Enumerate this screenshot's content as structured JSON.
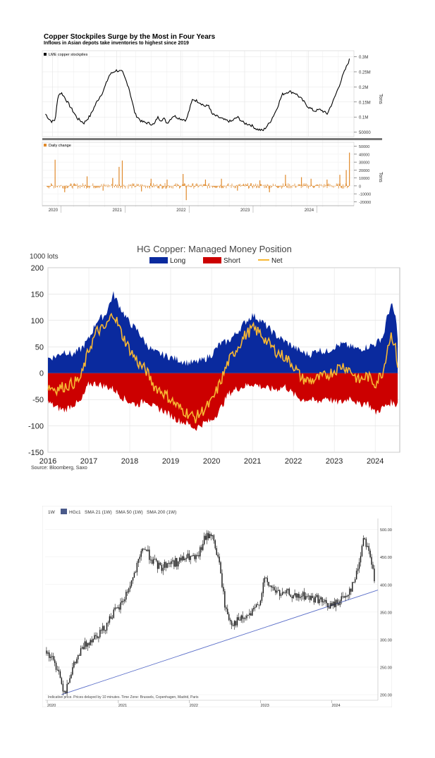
{
  "chart_data": [
    {
      "type": "line",
      "title": "Copper Stockpiles Surge by the Most in Four Years",
      "subtitle": "Inflows in Asian depots take inventories to highest since 2019",
      "x_ticks": [
        "2020",
        "2021",
        "2022",
        "2023",
        "2024"
      ],
      "panels": [
        {
          "kind": "line",
          "legend": "LME copper stockpiles",
          "ylabel": "Tons",
          "color": "#000000",
          "y_ticks": [
            "0.3M",
            "0.25M",
            "0.2M",
            "0.15M",
            "0.1M",
            "50000"
          ],
          "y_tick_values": [
            300000,
            250000,
            200000,
            150000,
            100000,
            50000
          ],
          "ylim": [
            35000,
            320000
          ],
          "x": [
            2019.8,
            2019.85,
            2019.9,
            2019.95,
            2020.0,
            2020.05,
            2020.1,
            2020.2,
            2020.3,
            2020.4,
            2020.5,
            2020.6,
            2020.7,
            2020.8,
            2020.9,
            2021.0,
            2021.1,
            2021.2,
            2021.3,
            2021.4,
            2021.5,
            2021.55,
            2021.6,
            2021.65,
            2021.7,
            2021.8,
            2021.9,
            2022.0,
            2022.1,
            2022.2,
            2022.3,
            2022.35,
            2022.4,
            2022.5,
            2022.6,
            2022.7,
            2022.8,
            2022.9,
            2023.0,
            2023.1,
            2023.2,
            2023.3,
            2023.4,
            2023.5,
            2023.6,
            2023.7,
            2023.8,
            2023.9,
            2024.0,
            2024.1,
            2024.2,
            2024.3,
            2024.4,
            2024.45,
            2024.5,
            2024.55
          ],
          "values": [
            110000,
            95000,
            85000,
            90000,
            175000,
            180000,
            165000,
            130000,
            95000,
            80000,
            105000,
            150000,
            185000,
            240000,
            255000,
            250000,
            200000,
            110000,
            85000,
            80000,
            75000,
            100000,
            90000,
            95000,
            80000,
            105000,
            95000,
            90000,
            160000,
            150000,
            135000,
            140000,
            110000,
            100000,
            90000,
            85000,
            100000,
            80000,
            75000,
            60000,
            55000,
            80000,
            120000,
            175000,
            185000,
            180000,
            160000,
            135000,
            120000,
            125000,
            110000,
            155000,
            210000,
            240000,
            265000,
            290000
          ]
        },
        {
          "kind": "bar",
          "legend": "Daily change",
          "ylabel": "Tons",
          "color": "#e08a2c",
          "y_ticks": [
            "50000",
            "40000",
            "30000",
            "20000",
            "10000",
            "0",
            "-10000",
            "-20000"
          ],
          "y_tick_values": [
            50000,
            40000,
            30000,
            20000,
            10000,
            0,
            -10000,
            -20000
          ],
          "ylim": [
            -25000,
            55000
          ],
          "spikes_x": [
            2019.95,
            2020.1,
            2020.45,
            2020.7,
            2020.85,
            2020.95,
            2021.0,
            2021.3,
            2021.45,
            2021.7,
            2021.95,
            2022.0,
            2022.3,
            2022.55,
            2022.8,
            2023.15,
            2023.3,
            2023.55,
            2023.8,
            2023.95,
            2024.2,
            2024.4,
            2024.5,
            2024.55
          ],
          "spikes_v": [
            33000,
            -8000,
            12000,
            -6000,
            10000,
            24000,
            32000,
            -7000,
            9000,
            8000,
            15000,
            -18000,
            8000,
            9000,
            -6000,
            7000,
            -8000,
            14000,
            11000,
            9000,
            8000,
            14000,
            20000,
            42000
          ]
        }
      ]
    },
    {
      "type": "area",
      "title": "HG Copper: Managed Money Position",
      "ylabel": "1000 lots",
      "ylim": [
        -150,
        200
      ],
      "y_ticks": [
        200,
        150,
        100,
        50,
        0,
        -50,
        -100,
        -150
      ],
      "xlim": [
        2016,
        2024.6
      ],
      "x_ticks": [
        2016,
        2017,
        2018,
        2019,
        2020,
        2021,
        2022,
        2023,
        2024
      ],
      "source": "Source: Bloomberg, Saxo",
      "legend": [
        "Long",
        "Short",
        "Net"
      ],
      "colors": {
        "Long": "#0a2a9e",
        "Short": "#cc0000",
        "Net": "#f7b733"
      },
      "x": [
        2016.0,
        2016.2,
        2016.4,
        2016.6,
        2016.8,
        2017.0,
        2017.2,
        2017.4,
        2017.6,
        2017.8,
        2018.0,
        2018.2,
        2018.4,
        2018.6,
        2018.8,
        2019.0,
        2019.2,
        2019.4,
        2019.6,
        2019.8,
        2020.0,
        2020.2,
        2020.4,
        2020.6,
        2020.8,
        2021.0,
        2021.2,
        2021.4,
        2021.6,
        2021.8,
        2022.0,
        2022.2,
        2022.4,
        2022.6,
        2022.8,
        2023.0,
        2023.2,
        2023.4,
        2023.6,
        2023.8,
        2024.0,
        2024.2,
        2024.3,
        2024.4,
        2024.5,
        2024.55
      ],
      "series": [
        {
          "name": "Long",
          "values": [
            28,
            32,
            42,
            35,
            45,
            65,
            100,
            110,
            150,
            120,
            95,
            80,
            55,
            40,
            35,
            30,
            25,
            20,
            20,
            25,
            35,
            55,
            60,
            75,
            95,
            110,
            100,
            85,
            70,
            60,
            50,
            40,
            35,
            45,
            40,
            50,
            55,
            50,
            45,
            50,
            55,
            70,
            110,
            130,
            105,
            70
          ]
        },
        {
          "name": "Short",
          "values": [
            -55,
            -65,
            -70,
            -60,
            -55,
            -20,
            -20,
            -25,
            -30,
            -45,
            -55,
            -60,
            -50,
            -65,
            -70,
            -80,
            -90,
            -95,
            -105,
            -95,
            -90,
            -70,
            -40,
            -30,
            -25,
            -20,
            -25,
            -30,
            -30,
            -25,
            -40,
            -50,
            -50,
            -55,
            -45,
            -55,
            -55,
            -45,
            -60,
            -55,
            -75,
            -65,
            -60,
            -55,
            -60,
            -55
          ]
        },
        {
          "name": "Net",
          "values": [
            -25,
            -30,
            -25,
            -20,
            -10,
            45,
            80,
            85,
            115,
            75,
            45,
            20,
            5,
            -25,
            -35,
            -50,
            -65,
            -75,
            -85,
            -70,
            -55,
            -20,
            20,
            45,
            70,
            85,
            75,
            55,
            40,
            30,
            15,
            -10,
            -15,
            -10,
            -5,
            5,
            15,
            5,
            -15,
            -5,
            -20,
            5,
            50,
            75,
            45,
            15
          ]
        }
      ]
    },
    {
      "type": "candlestick",
      "toolbar": {
        "interval": "1W",
        "ticker": "HGc1",
        "sma21": "SMA 21 (1W)",
        "sma50": "SMA 50 (1W)",
        "sma200": "SMA 200 (1W)"
      },
      "footer": "Indicative price. Prices delayed by 10 minutes.  Time Zone: Brussels, Copenhagen, Madrid, Paris",
      "ylim": [
        195,
        520
      ],
      "y_ticks": [
        "500.00",
        "450.00",
        "400.00",
        "350.00",
        "300.00",
        "250.00",
        "200.00"
      ],
      "y_tick_values": [
        500,
        450,
        400,
        350,
        300,
        250,
        200
      ],
      "x_ticks": [
        "2020",
        "2021",
        "2022",
        "2023",
        "2024"
      ],
      "xlim": [
        2019.97,
        2024.65
      ],
      "trendline": {
        "from": [
          2020.2,
          200
        ],
        "to": [
          2024.65,
          390
        ],
        "color": "#5b6fc9"
      },
      "x": [
        2019.97,
        2020.05,
        2020.1,
        2020.15,
        2020.2,
        2020.25,
        2020.3,
        2020.4,
        2020.5,
        2020.6,
        2020.7,
        2020.8,
        2020.9,
        2021.0,
        2021.1,
        2021.2,
        2021.3,
        2021.35,
        2021.4,
        2021.5,
        2021.6,
        2021.7,
        2021.8,
        2021.9,
        2022.0,
        2022.1,
        2022.15,
        2022.2,
        2022.3,
        2022.4,
        2022.45,
        2022.5,
        2022.55,
        2022.6,
        2022.7,
        2022.8,
        2022.9,
        2023.0,
        2023.05,
        2023.1,
        2023.2,
        2023.3,
        2023.4,
        2023.5,
        2023.6,
        2023.7,
        2023.8,
        2023.9,
        2024.0,
        2024.1,
        2024.2,
        2024.25,
        2024.3,
        2024.35,
        2024.4,
        2024.45,
        2024.5,
        2024.55,
        2024.6
      ],
      "close": [
        280,
        270,
        255,
        250,
        220,
        205,
        230,
        260,
        285,
        300,
        310,
        320,
        345,
        355,
        380,
        410,
        445,
        470,
        460,
        440,
        430,
        440,
        440,
        445,
        450,
        445,
        460,
        480,
        495,
        450,
        410,
        360,
        340,
        330,
        335,
        340,
        350,
        375,
        410,
        400,
        390,
        380,
        385,
        375,
        380,
        375,
        375,
        365,
        360,
        370,
        380,
        390,
        400,
        420,
        450,
        490,
        470,
        450,
        405
      ]
    }
  ]
}
